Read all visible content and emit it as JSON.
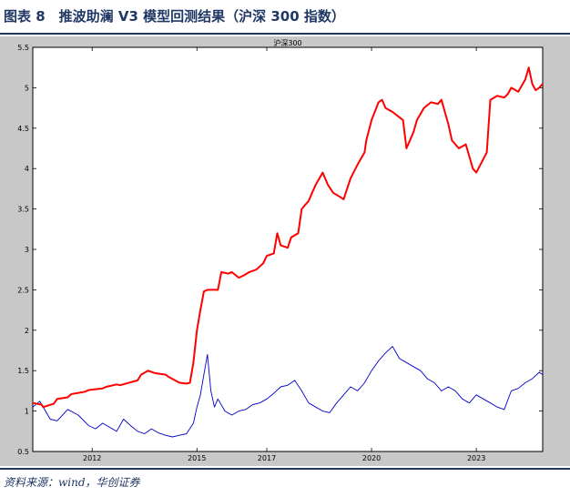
{
  "figure": {
    "title": "图表 8　推波助澜 V3 模型回测结果（沪深 300 指数）",
    "source": "资料来源：wind，华创证券"
  },
  "chart_data": {
    "type": "line",
    "title": "沪深300",
    "xlabel": "",
    "ylabel": "",
    "x_tick_labels": [
      "2012",
      "2015",
      "2017",
      "2020",
      "2023"
    ],
    "x_tick_positions": [
      2012.0,
      2015.0,
      2017.0,
      2020.0,
      2023.0
    ],
    "xlim": [
      2010.3,
      2024.9
    ],
    "ylim": [
      0.5,
      5.5
    ],
    "y_ticks": [
      0.5,
      1,
      1.5,
      2,
      2.5,
      3,
      3.5,
      4,
      4.5,
      5,
      5.5
    ],
    "y_tick_labels": [
      "0.5",
      "1",
      "1.5",
      "2",
      "2.5",
      "3",
      "3.5",
      "4",
      "4.5",
      "5",
      "5.5"
    ],
    "grid": false,
    "colors": {
      "plot_bg": "#ffffff",
      "frame_bg": "#c8c8c8",
      "strategy": "#ff0000",
      "index": "#0000cc"
    },
    "series": [
      {
        "key": "strategy",
        "color": "#ff0000",
        "x": [
          2010.3,
          2010.55,
          2010.6,
          2010.9,
          2011.0,
          2011.3,
          2011.4,
          2011.8,
          2011.9,
          2012.3,
          2012.4,
          2012.7,
          2012.8,
          2013.3,
          2013.4,
          2013.6,
          2013.8,
          2014.1,
          2014.2,
          2014.5,
          2014.7,
          2014.8,
          2014.9,
          2015.0,
          2015.1,
          2015.2,
          2015.3,
          2015.6,
          2015.7,
          2015.9,
          2016.0,
          2016.2,
          2016.35,
          2016.5,
          2016.7,
          2016.9,
          2017.0,
          2017.2,
          2017.3,
          2017.4,
          2017.6,
          2017.7,
          2017.9,
          2018.0,
          2018.2,
          2018.3,
          2018.4,
          2018.6,
          2018.75,
          2018.9,
          2019.1,
          2019.2,
          2019.4,
          2019.6,
          2019.8,
          2019.85,
          2020.0,
          2020.2,
          2020.3,
          2020.4,
          2020.6,
          2020.9,
          2021.0,
          2021.2,
          2021.3,
          2021.5,
          2021.7,
          2021.9,
          2022.0,
          2022.2,
          2022.3,
          2022.5,
          2022.7,
          2022.9,
          2023.0,
          2023.3,
          2023.4,
          2023.6,
          2023.8,
          2023.9,
          2024.0,
          2024.2,
          2024.4,
          2024.5,
          2024.6,
          2024.7,
          2024.8,
          2024.9
        ],
        "y": [
          1.1,
          1.08,
          1.05,
          1.09,
          1.15,
          1.17,
          1.21,
          1.24,
          1.26,
          1.28,
          1.3,
          1.33,
          1.32,
          1.38,
          1.45,
          1.5,
          1.47,
          1.45,
          1.42,
          1.35,
          1.34,
          1.35,
          1.6,
          2.0,
          2.25,
          2.48,
          2.5,
          2.5,
          2.72,
          2.7,
          2.72,
          2.65,
          2.68,
          2.72,
          2.75,
          2.83,
          2.92,
          2.95,
          3.2,
          3.05,
          3.02,
          3.15,
          3.2,
          3.5,
          3.6,
          3.7,
          3.8,
          3.95,
          3.8,
          3.7,
          3.65,
          3.62,
          3.88,
          4.05,
          4.2,
          4.35,
          4.6,
          4.82,
          4.85,
          4.75,
          4.7,
          4.6,
          4.25,
          4.45,
          4.6,
          4.75,
          4.82,
          4.8,
          4.85,
          4.55,
          4.35,
          4.25,
          4.3,
          4.0,
          3.95,
          4.2,
          4.85,
          4.9,
          4.88,
          4.92,
          5.0,
          4.95,
          5.1,
          5.25,
          5.05,
          4.97,
          5.0,
          5.05
        ]
      },
      {
        "key": "index",
        "color": "#0000cc",
        "x": [
          2010.3,
          2010.5,
          2010.8,
          2011.0,
          2011.3,
          2011.6,
          2011.9,
          2012.1,
          2012.3,
          2012.5,
          2012.7,
          2012.9,
          2013.1,
          2013.3,
          2013.5,
          2013.7,
          2013.9,
          2014.1,
          2014.3,
          2014.5,
          2014.7,
          2014.9,
          2015.0,
          2015.1,
          2015.2,
          2015.3,
          2015.4,
          2015.5,
          2015.6,
          2015.8,
          2016.0,
          2016.2,
          2016.4,
          2016.6,
          2016.8,
          2017.0,
          2017.2,
          2017.4,
          2017.6,
          2017.8,
          2018.0,
          2018.2,
          2018.4,
          2018.6,
          2018.8,
          2019.0,
          2019.2,
          2019.4,
          2019.6,
          2019.8,
          2020.0,
          2020.2,
          2020.4,
          2020.6,
          2020.8,
          2021.0,
          2021.2,
          2021.4,
          2021.6,
          2021.8,
          2022.0,
          2022.2,
          2022.4,
          2022.6,
          2022.8,
          2023.0,
          2023.2,
          2023.4,
          2023.6,
          2023.8,
          2024.0,
          2024.2,
          2024.4,
          2024.6,
          2024.8,
          2024.9
        ],
        "y": [
          1.05,
          1.12,
          0.9,
          0.88,
          1.02,
          0.95,
          0.82,
          0.78,
          0.85,
          0.8,
          0.75,
          0.9,
          0.82,
          0.75,
          0.72,
          0.78,
          0.73,
          0.7,
          0.68,
          0.7,
          0.72,
          0.85,
          1.05,
          1.2,
          1.45,
          1.7,
          1.25,
          1.05,
          1.15,
          1.0,
          0.95,
          1.0,
          1.02,
          1.08,
          1.1,
          1.15,
          1.22,
          1.3,
          1.32,
          1.38,
          1.25,
          1.1,
          1.05,
          1.0,
          0.98,
          1.1,
          1.2,
          1.3,
          1.25,
          1.35,
          1.5,
          1.62,
          1.72,
          1.8,
          1.65,
          1.6,
          1.55,
          1.5,
          1.4,
          1.35,
          1.25,
          1.3,
          1.25,
          1.15,
          1.1,
          1.2,
          1.15,
          1.1,
          1.05,
          1.02,
          1.25,
          1.28,
          1.35,
          1.4,
          1.48,
          1.45
        ]
      }
    ]
  }
}
